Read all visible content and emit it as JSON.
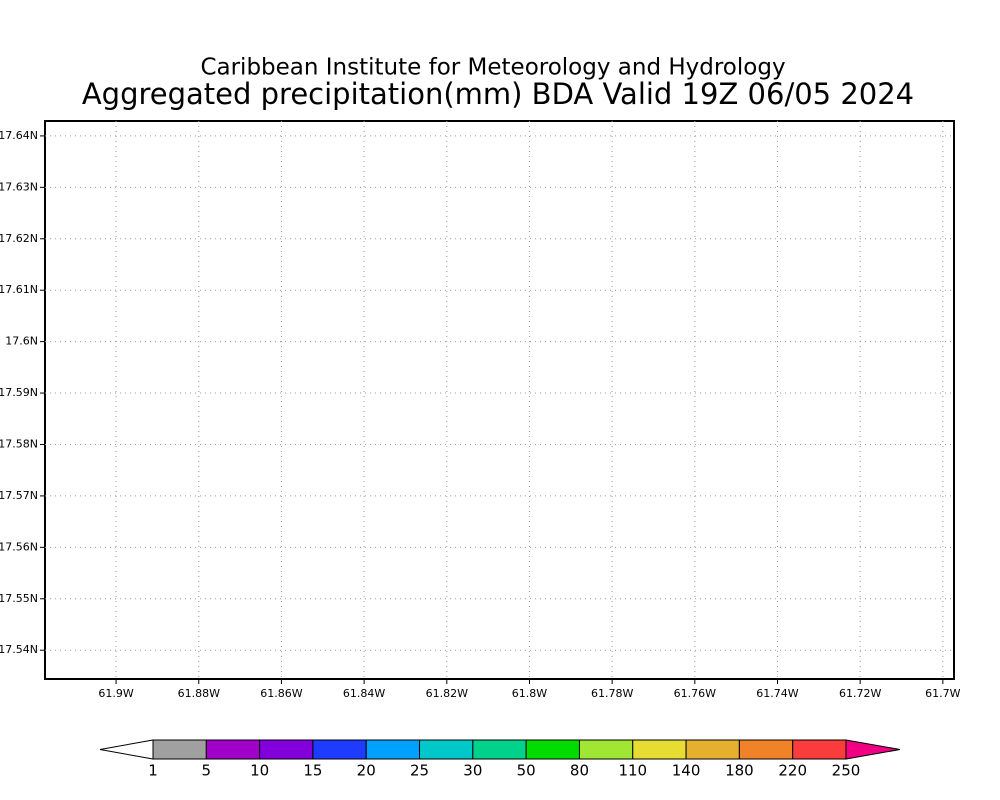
{
  "chart_data": {
    "type": "map",
    "title": "Caribbean Institute for Meteorology and Hydrology",
    "subtitle": "Aggregated precipitation(mm) BDA Valid 19Z 06/05 2024",
    "xlim": [
      -61.9172,
      -61.6973
    ],
    "ylim": [
      17.5344,
      17.6429
    ],
    "xticks": [
      {
        "value": -61.9,
        "label": "61.9W"
      },
      {
        "value": -61.88,
        "label": "61.88W"
      },
      {
        "value": -61.86,
        "label": "61.86W"
      },
      {
        "value": -61.84,
        "label": "61.84W"
      },
      {
        "value": -61.82,
        "label": "61.82W"
      },
      {
        "value": -61.8,
        "label": "61.8W"
      },
      {
        "value": -61.78,
        "label": "61.78W"
      },
      {
        "value": -61.76,
        "label": "61.76W"
      },
      {
        "value": -61.74,
        "label": "61.74W"
      },
      {
        "value": -61.72,
        "label": "61.72W"
      },
      {
        "value": -61.7,
        "label": "61.7W"
      }
    ],
    "yticks": [
      {
        "value": 17.54,
        "label": "17.54N"
      },
      {
        "value": 17.55,
        "label": "17.55N"
      },
      {
        "value": 17.56,
        "label": "17.56N"
      },
      {
        "value": 17.57,
        "label": "17.57N"
      },
      {
        "value": 17.58,
        "label": "17.58N"
      },
      {
        "value": 17.59,
        "label": "17.59N"
      },
      {
        "value": 17.6,
        "label": "17.6N"
      },
      {
        "value": 17.61,
        "label": "17.61N"
      },
      {
        "value": 17.62,
        "label": "17.62N"
      },
      {
        "value": 17.63,
        "label": "17.63N"
      },
      {
        "value": 17.64,
        "label": "17.64N"
      }
    ],
    "grid": true,
    "colorbar": {
      "levels": [
        1,
        5,
        10,
        15,
        20,
        25,
        30,
        50,
        80,
        110,
        140,
        180,
        220,
        250
      ],
      "colors": [
        "#ffffff",
        "#a0a0a0",
        "#a000c8",
        "#8200dc",
        "#1e3cff",
        "#00a0ff",
        "#00c8c8",
        "#00d28c",
        "#00dc00",
        "#a0e632",
        "#e6dc32",
        "#e6af2d",
        "#f08228",
        "#fa3c3c",
        "#f00082"
      ]
    }
  }
}
